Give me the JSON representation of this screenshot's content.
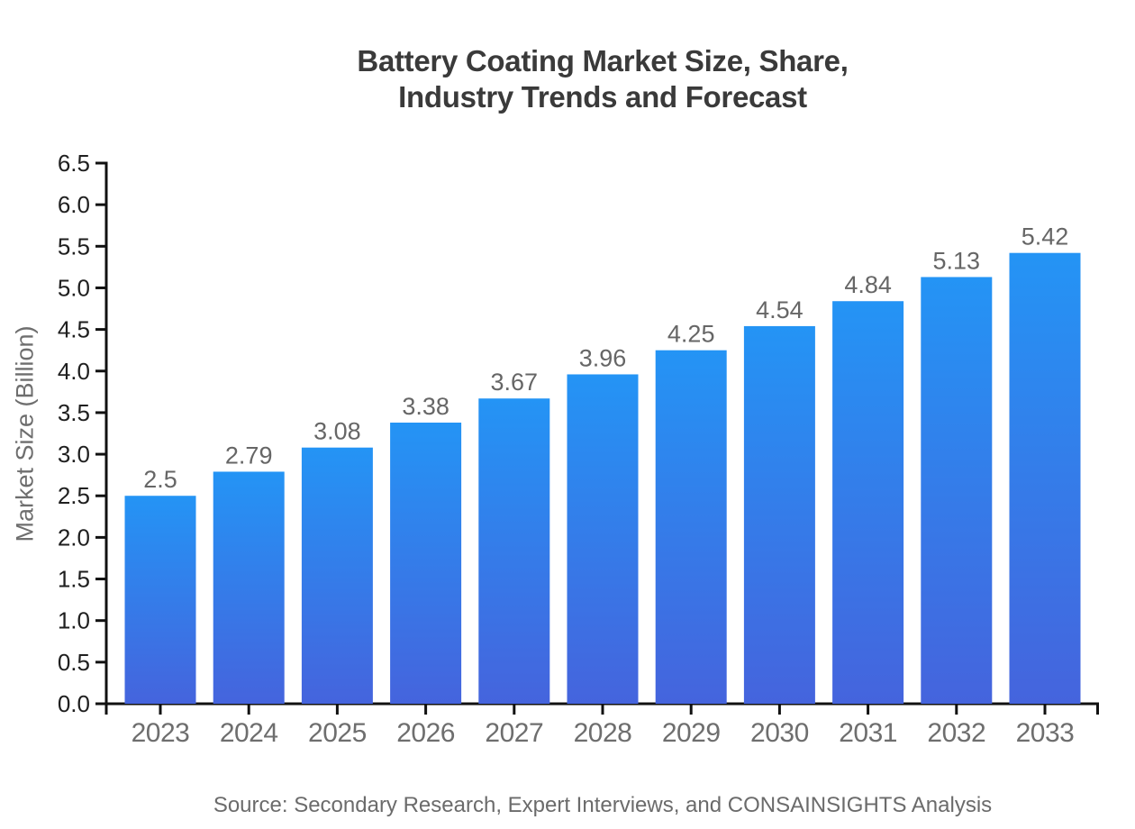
{
  "page": {
    "title_line1": "Battery Coating Market Size, Share,",
    "title_line2": "Industry Trends and Forecast",
    "source": "Source: Secondary Research, Expert Interviews, and CONSAINSIGHTS Analysis"
  },
  "colors": {
    "axis": "#111111",
    "title_text": "#3a3a3a",
    "ytick_text": "#1f1f1f",
    "xtick_text": "#6e6e6e",
    "value_text": "#666666",
    "source_text": "#6b6b6b",
    "bar_top": "#2494f5",
    "bar_bottom": "#4564dd"
  },
  "chart_data": {
    "type": "bar",
    "title": "Battery Coating Market Size, Share, Industry Trends and Forecast",
    "categories": [
      "2023",
      "2024",
      "2025",
      "2026",
      "2027",
      "2028",
      "2029",
      "2030",
      "2031",
      "2032",
      "2033"
    ],
    "values": [
      2.5,
      2.79,
      3.08,
      3.38,
      3.67,
      3.96,
      4.25,
      4.54,
      4.84,
      5.13,
      5.42
    ],
    "value_labels": [
      "2.5",
      "2.79",
      "3.08",
      "3.38",
      "3.67",
      "3.96",
      "4.25",
      "4.54",
      "4.84",
      "5.13",
      "5.42"
    ],
    "xlabel": "",
    "ylabel": "Market Size (Billion)",
    "ylim": [
      0,
      6.5
    ],
    "ytick_step": 0.5,
    "grid": false,
    "legend": false,
    "bar_gradient": [
      "#2494f5",
      "#4564dd"
    ]
  }
}
